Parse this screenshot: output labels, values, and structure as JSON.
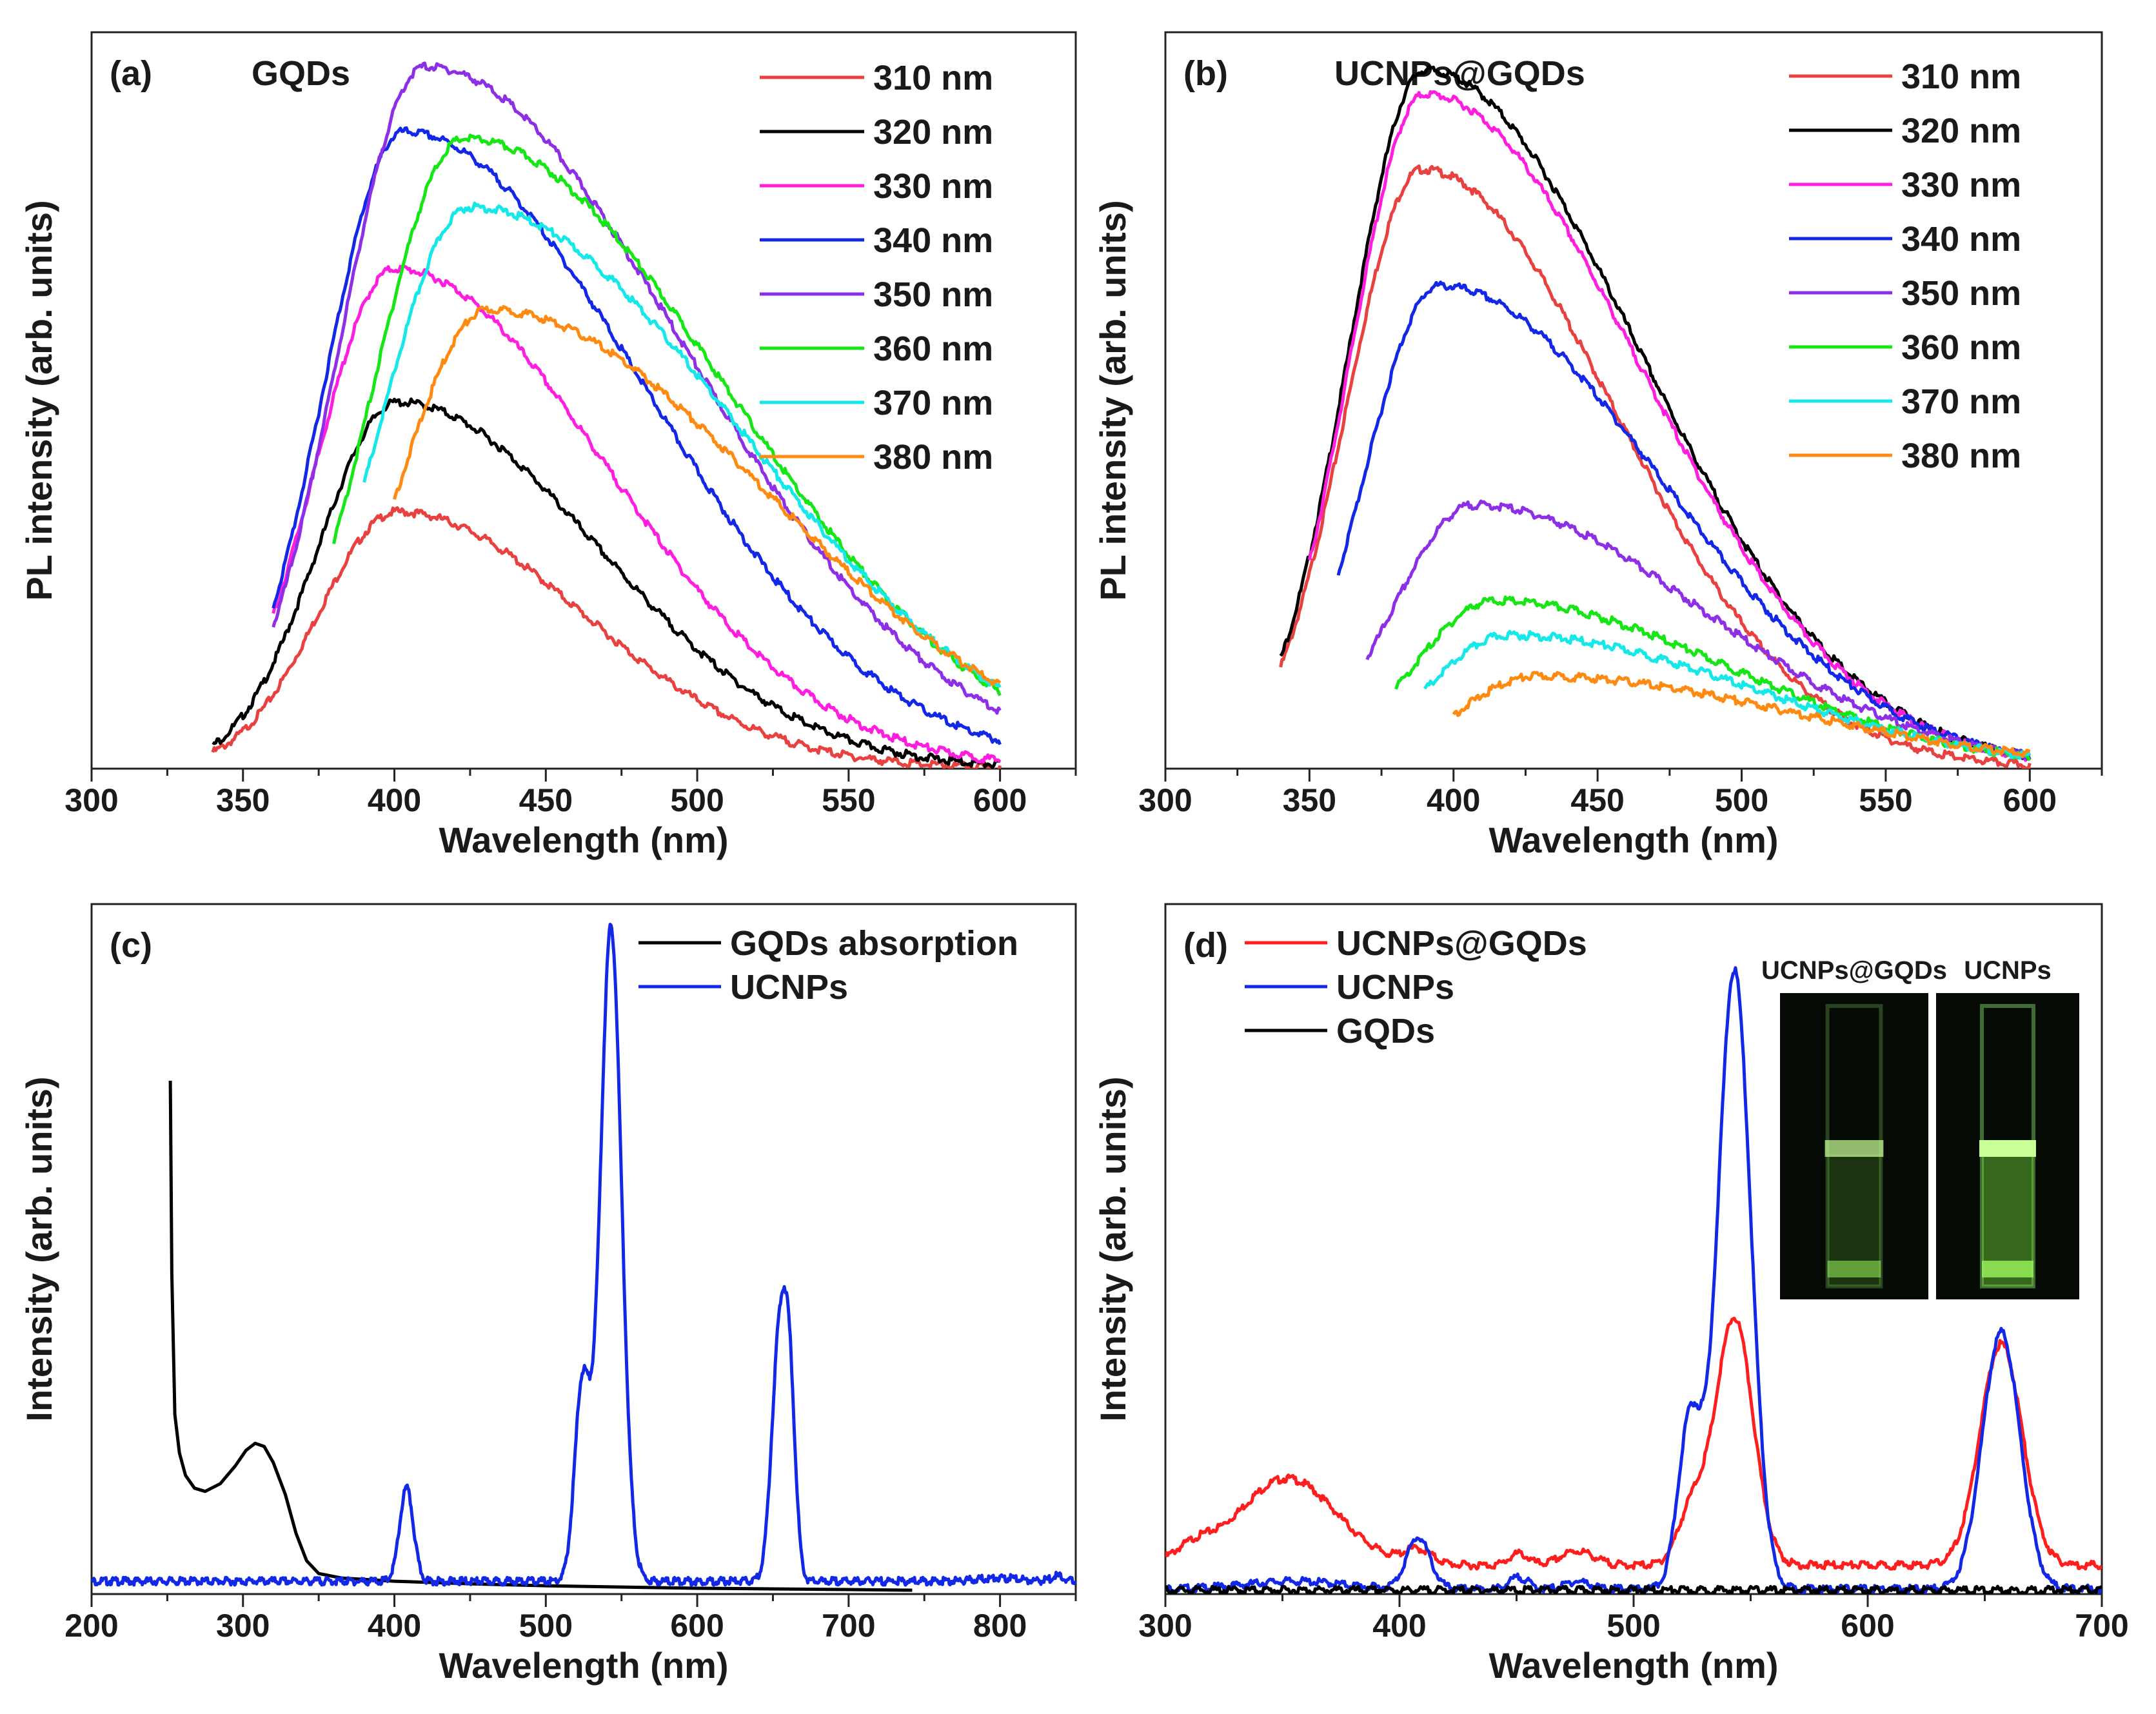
{
  "chart_data": [
    {
      "id": "a",
      "type": "line",
      "panel_label": "(a)",
      "title": "GQDs",
      "xlabel": "Wavelength (nm)",
      "ylabel": "PL intensity (arb. units)",
      "xlim": [
        300,
        625
      ],
      "ylim": [
        0,
        1.0
      ],
      "xticks": [
        300,
        350,
        400,
        450,
        500,
        550,
        600
      ],
      "yticks_shown": false,
      "legend_position": "top-right",
      "series": [
        {
          "name": "310 nm",
          "color": "#e8413f",
          "start": 340,
          "peak_x": 401,
          "peak_y": 0.375,
          "w_left": 26,
          "w_right": 48
        },
        {
          "name": "320 nm",
          "color": "#000000",
          "start": 340,
          "peak_x": 401,
          "peak_y": 0.535,
          "w_left": 26,
          "w_right": 52
        },
        {
          "name": "330 nm",
          "color": "#ff1ee0",
          "start": 360,
          "peak_x": 400,
          "peak_y": 0.73,
          "w_left": 26,
          "w_right": 55
        },
        {
          "name": "340 nm",
          "color": "#1228e6",
          "start": 360,
          "peak_x": 403,
          "peak_y": 0.93,
          "w_left": 26,
          "w_right": 62
        },
        {
          "name": "350 nm",
          "color": "#8d2fe6",
          "start": 360,
          "peak_x": 410,
          "peak_y": 1.025,
          "w_left": 28,
          "w_right": 67
        },
        {
          "name": "360 nm",
          "color": "#16e616",
          "start": 380,
          "peak_x": 423,
          "peak_y": 0.92,
          "w_left": 30,
          "w_right": 68
        },
        {
          "name": "370 nm",
          "color": "#14e8e8",
          "start": 390,
          "peak_x": 425,
          "peak_y": 0.82,
          "w_left": 30,
          "w_right": 70
        },
        {
          "name": "380 nm",
          "color": "#ff8a12",
          "start": 400,
          "peak_x": 431,
          "peak_y": 0.67,
          "w_left": 30,
          "w_right": 72
        }
      ]
    },
    {
      "id": "b",
      "type": "line",
      "panel_label": "(b)",
      "title": "UCNPs@GQDs",
      "xlabel": "Wavelength (nm)",
      "ylabel": "PL intensity (arb. units)",
      "xlim": [
        300,
        625
      ],
      "ylim": [
        0,
        1.0
      ],
      "xticks": [
        300,
        350,
        400,
        450,
        500,
        550,
        600
      ],
      "yticks_shown": false,
      "legend_position": "top-right",
      "series": [
        {
          "name": "310 nm",
          "color": "#e8413f",
          "start": 340,
          "peak_x": 389,
          "peak_y": 0.875,
          "w_left": 26,
          "w_right": 52
        },
        {
          "name": "320 nm",
          "color": "#000000",
          "start": 340,
          "peak_x": 390,
          "peak_y": 1.02,
          "w_left": 26,
          "w_right": 58
        },
        {
          "name": "330 nm",
          "color": "#ff1ee0",
          "start": 350,
          "peak_x": 390,
          "peak_y": 0.985,
          "w_left": 26,
          "w_right": 58
        },
        {
          "name": "340 nm",
          "color": "#1228e6",
          "start": 360,
          "peak_x": 395,
          "peak_y": 0.705,
          "w_left": 26,
          "w_right": 60
        },
        {
          "name": "350 nm",
          "color": "#8d2fe6",
          "start": 370,
          "peak_x": 407,
          "peak_y": 0.385,
          "w_left": 28,
          "w_right": 62
        },
        {
          "name": "360 nm",
          "color": "#16e616",
          "start": 380,
          "peak_x": 414,
          "peak_y": 0.245,
          "w_left": 28,
          "w_right": 64
        },
        {
          "name": "370 nm",
          "color": "#14e8e8",
          "start": 390,
          "peak_x": 419,
          "peak_y": 0.195,
          "w_left": 28,
          "w_right": 66
        },
        {
          "name": "380 nm",
          "color": "#ff8a12",
          "start": 400,
          "peak_x": 429,
          "peak_y": 0.135,
          "w_left": 28,
          "w_right": 70
        }
      ]
    },
    {
      "id": "c",
      "type": "line",
      "panel_label": "(c)",
      "xlabel": "Wavelength (nm)",
      "ylabel": "Intensity (arb. units)",
      "xlim": [
        200,
        850
      ],
      "ylim": [
        0,
        1.0
      ],
      "xticks": [
        200,
        300,
        400,
        500,
        600,
        700,
        800
      ],
      "yticks_shown": false,
      "legend_position": "top-right",
      "series": [
        {
          "name": "GQDs absorption",
          "color": "#000000",
          "points": [
            [
              252,
              0.8
            ],
            [
              253,
              0.5
            ],
            [
              255,
              0.28
            ],
            [
              258,
              0.22
            ],
            [
              262,
              0.185
            ],
            [
              268,
              0.165
            ],
            [
              275,
              0.16
            ],
            [
              285,
              0.172
            ],
            [
              295,
              0.2
            ],
            [
              302,
              0.224
            ],
            [
              308,
              0.235
            ],
            [
              314,
              0.23
            ],
            [
              320,
              0.205
            ],
            [
              328,
              0.155
            ],
            [
              335,
              0.095
            ],
            [
              342,
              0.052
            ],
            [
              350,
              0.032
            ],
            [
              365,
              0.025
            ],
            [
              400,
              0.02
            ],
            [
              450,
              0.016
            ],
            [
              500,
              0.013
            ],
            [
              550,
              0.011
            ],
            [
              600,
              0.009
            ],
            [
              650,
              0.008
            ],
            [
              700,
              0.007
            ],
            [
              742,
              0.006
            ]
          ]
        },
        {
          "name": "UCNPs",
          "color": "#1228e6",
          "baseline": 0.02,
          "peaks": [
            [
              408,
              0.145,
              4.5
            ],
            [
              524,
              0.3,
              5
            ],
            [
              543,
              1.02,
              7
            ],
            [
              654,
              0.36,
              5
            ],
            [
              661,
              0.26,
              4
            ],
            [
              800,
              0.005,
              14
            ],
            [
              838,
              0.008,
              4
            ]
          ]
        }
      ]
    },
    {
      "id": "d",
      "type": "line",
      "panel_label": "(d)",
      "xlabel": "Wavelength (nm)",
      "ylabel": "Intensity (arb. units)",
      "xlim": [
        300,
        700
      ],
      "ylim": [
        0,
        1.0
      ],
      "xticks": [
        300,
        400,
        500,
        600,
        700
      ],
      "yticks_shown": false,
      "legend_position": "top-left",
      "series": [
        {
          "name": "UCNPs@GQDs",
          "color": "#ff1e1e",
          "baseline": 0.045,
          "peaks": [
            [
              352,
              0.135,
              21
            ],
            [
              312,
              0.02,
              8
            ],
            [
              408,
              0.022,
              6
            ],
            [
              451,
              0.018,
              4
            ],
            [
              476,
              0.022,
              7
            ],
            [
              525,
              0.085,
              6
            ],
            [
              543,
              0.385,
              8
            ],
            [
              657,
              0.345,
              9
            ]
          ]
        },
        {
          "name": "UCNPs",
          "color": "#1228e6",
          "baseline": 0.008,
          "peaks": [
            [
              355,
              0.012,
              20
            ],
            [
              408,
              0.08,
              5
            ],
            [
              451,
              0.018,
              4
            ],
            [
              476,
              0.012,
              5
            ],
            [
              524,
              0.26,
              5
            ],
            [
              543,
              0.965,
              7
            ],
            [
              657,
              0.4,
              8
            ]
          ]
        },
        {
          "name": "GQDs",
          "color": "#000000",
          "baseline": 0.006,
          "peaks": []
        }
      ],
      "inset": {
        "labels": [
          "UCNPs@GQDs",
          "UCNPs"
        ]
      }
    }
  ]
}
